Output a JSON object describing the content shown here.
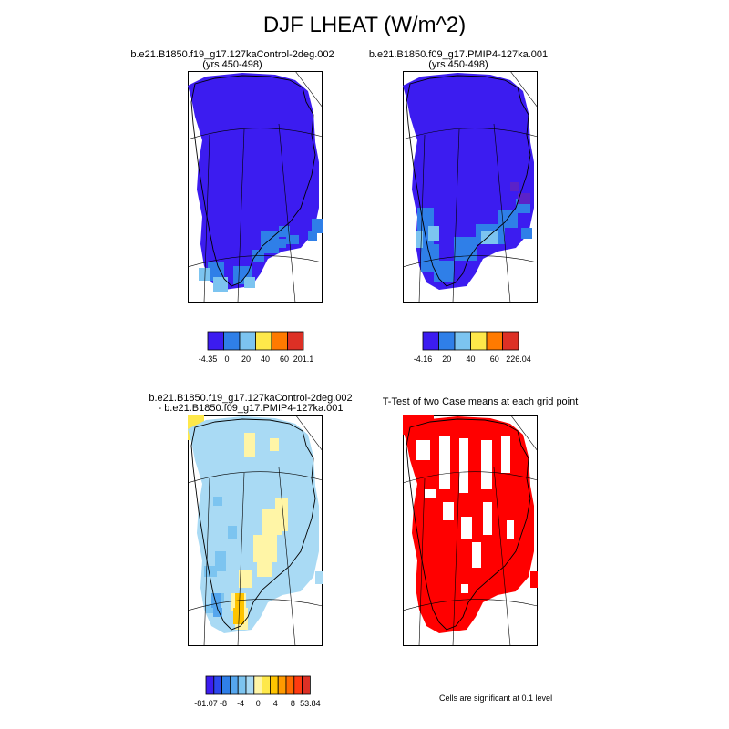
{
  "title": "DJF LHEAT (W/m^2)",
  "panels": [
    {
      "title_line1": "b.e21.B1850.f19_g17.127kaControl-2deg.002",
      "title_line2": "(yrs 450-498)"
    },
    {
      "title_line1": "b.e21.B1850.f09_g17.PMIP4-127ka.001",
      "title_line2": "(yrs 450-498)"
    },
    {
      "title_line1": "b.e21.B1850.f19_g17.127kaControl-2deg.002",
      "title_line2": "- b.e21.B1850.f09_g17.PMIP4-127ka.001"
    },
    {
      "title_line1": "T-Test of two Case means at each grid point",
      "title_line2": ""
    }
  ],
  "note": "Cells are significant at 0.1 level",
  "chart_data": [
    {
      "type": "heatmap",
      "title": "b.e21.B1850.f19_g17.127kaControl-2deg.002 (yrs 450-498)",
      "colorbar": {
        "colors": [
          "#3c1cf0",
          "#2f7fe8",
          "#7cc4f0",
          "#fee84a",
          "#ff7a00",
          "#dd3025"
        ],
        "tick_labels": [
          "-4.35",
          "0",
          "20",
          "40",
          "60",
          "201.1"
        ]
      }
    },
    {
      "type": "heatmap",
      "title": "b.e21.B1850.f09_g17.PMIP4-127ka.001 (yrs 450-498)",
      "colorbar": {
        "colors": [
          "#3c1cf0",
          "#2f7fe8",
          "#7cc4f0",
          "#fee84a",
          "#ff7a00",
          "#dd3025"
        ],
        "tick_labels": [
          "-4.16",
          "20",
          "40",
          "60",
          "226.04"
        ]
      }
    },
    {
      "type": "heatmap",
      "title": "b.e21.B1850.f19_g17.127kaControl-2deg.002 - b.e21.B1850.f09_g17.PMIP4-127ka.001",
      "colorbar": {
        "colors": [
          "#3c1cf0",
          "#2c47ee",
          "#2f7fe8",
          "#55a6ee",
          "#7cc4f0",
          "#a9daf4",
          "#fff5a6",
          "#fee84a",
          "#ffc400",
          "#ff9a00",
          "#ff6a00",
          "#ff3a10",
          "#dd3025"
        ],
        "tick_labels": [
          "-81.07",
          "-8",
          "-4",
          "0",
          "4",
          "8",
          "53.84"
        ]
      }
    },
    {
      "type": "heatmap",
      "title": "T-Test of two Case means at each grid point",
      "colors": [
        "#ff0000"
      ]
    }
  ]
}
